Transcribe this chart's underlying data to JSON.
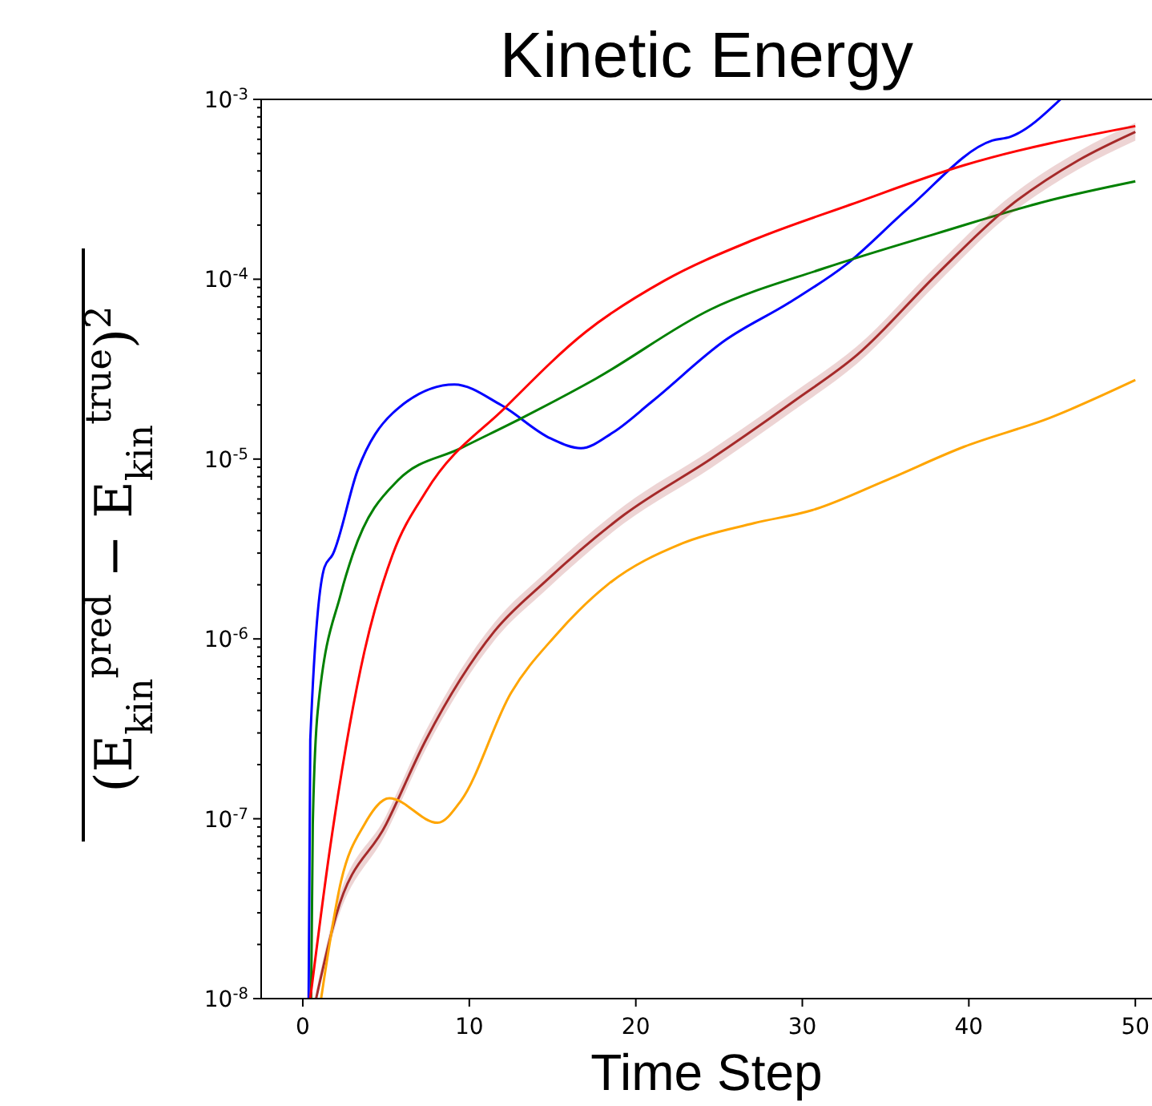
{
  "chart_data": {
    "type": "line",
    "title": "Kinetic Energy",
    "xlabel": "Time Step",
    "ylabel": "(E$_{kin}$$^{pred}$ − E$_{kin}$$^{true}$)$^{2}$",
    "log": "y",
    "grid": false,
    "marker": "none",
    "line_style": "solid",
    "xlim": [
      -2.5,
      51
    ],
    "xticks": [
      0,
      10,
      20,
      30,
      40,
      50
    ],
    "ylim": [
      1e-08,
      0.001
    ],
    "yticks": [
      {
        "value": 1e-08,
        "label": "10$^{-8}$"
      },
      {
        "value": 1e-07,
        "label": "10$^{-7}$"
      },
      {
        "value": 1e-06,
        "label": "10$^{-6}$"
      },
      {
        "value": 1e-05,
        "label": "10$^{-5}$"
      },
      {
        "value": 0.0001,
        "label": "10$^{-4}$"
      },
      {
        "value": 0.001,
        "label": "10$^{-3}$"
      }
    ],
    "series": [
      {
        "color": "#0000ff",
        "x": [
          0.35,
          0.45,
          1.3,
          1.8,
          3.3,
          5.4,
          9.1,
          11.9,
          14.9,
          16.7,
          18.6,
          21.0,
          25.4,
          29.2,
          32.6,
          36.4,
          41.4,
          42.5,
          45.5
        ],
        "values": [
          1e-08,
          2.75e-07,
          2.5e-06,
          2.95e-06,
          8.7e-06,
          1.8e-05,
          2.6e-05,
          2e-05,
          1.3e-05,
          1.15e-05,
          1.4e-05,
          2.1e-05,
          4.6e-05,
          7.4e-05,
          0.00012,
          0.00025,
          0.00059,
          0.00062,
          0.001
        ]
      },
      {
        "color": "#008000",
        "x": [
          0.5,
          0.6,
          0.9,
          2.3,
          3.0,
          5.7,
          9.5,
          13.2,
          17.6,
          24.5,
          31.3,
          38.1,
          44.9,
          50
        ],
        "values": [
          1e-08,
          9.3e-08,
          4e-07,
          1.8e-06,
          2.95e-06,
          7.6e-06,
          1.15e-05,
          1.7e-05,
          2.8e-05,
          6.8e-05,
          0.000115,
          0.00018,
          0.000275,
          0.00035
        ]
      },
      {
        "color": "#ff0000",
        "x": [
          0.45,
          1.6,
          3.7,
          5.4,
          7.4,
          12.2,
          17.0,
          21.7,
          27.1,
          32.9,
          39.7,
          50
        ],
        "values": [
          1e-08,
          6.5e-08,
          8.5e-07,
          2.95e-06,
          6.6e-06,
          1.95e-05,
          5.1e-05,
          9.8e-05,
          0.000166,
          0.00026,
          0.00043,
          0.00071
        ]
      },
      {
        "color": "#a52a2a",
        "x": [
          0.8,
          2.0,
          5.0,
          7.4,
          11.5,
          14.6,
          19.3,
          24.5,
          29.5,
          33.3,
          38.1,
          42.1,
          46.6,
          50
        ],
        "values": [
          1e-08,
          2.9e-08,
          9.3e-08,
          2.75e-07,
          1.1e-06,
          2.1e-06,
          4.9e-06,
          1e-05,
          2.1e-05,
          3.8e-05,
          0.000107,
          0.00024,
          0.00046,
          0.00066
        ],
        "lower": [
          1e-08,
          2.6e-08,
          8.3e-08,
          2.45e-07,
          9.8e-07,
          1.87e-06,
          4.4e-06,
          8.9e-06,
          1.87e-05,
          3.4e-05,
          9.5e-05,
          0.000215,
          0.00041,
          0.00059
        ],
        "upper": [
          1.1e-08,
          3.25e-08,
          1.04e-07,
          3.1e-07,
          1.23e-06,
          2.35e-06,
          5.5e-06,
          1.12e-05,
          2.35e-05,
          4.25e-05,
          0.00012,
          0.00027,
          0.000515,
          0.00074
        ]
      },
      {
        "color": "#ffa500",
        "x": [
          1.1,
          2.3,
          3.7,
          5.2,
          8.1,
          9.5,
          12.5,
          15.2,
          18.3,
          22.8,
          27.1,
          30.6,
          35.0,
          39.7,
          44.9,
          50
        ],
        "values": [
          1e-08,
          4.5e-08,
          9.3e-08,
          1.3e-07,
          9.5e-08,
          1.26e-07,
          5e-07,
          1.05e-06,
          2e-06,
          3.4e-06,
          4.4e-06,
          5.2e-06,
          7.6e-06,
          1.17e-05,
          1.7e-05,
          2.75e-05
        ]
      }
    ]
  }
}
